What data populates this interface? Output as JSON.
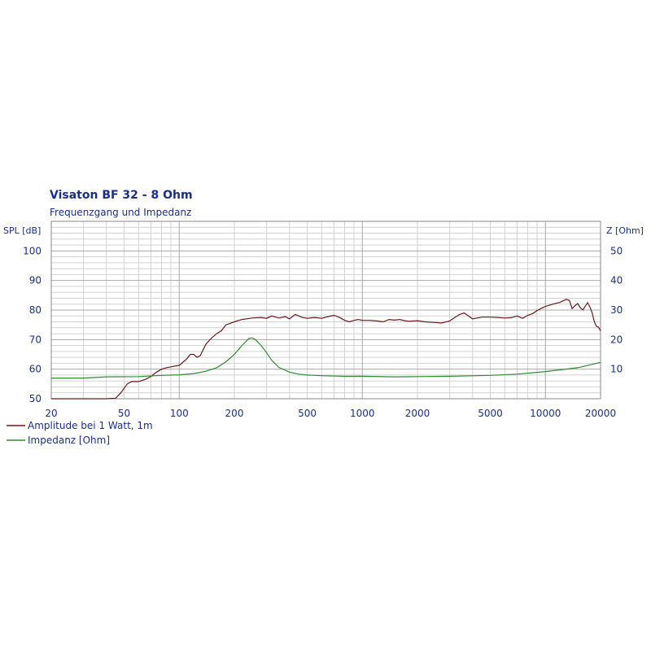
{
  "chart_data": {
    "type": "line",
    "title": "Visaton BF 32 - 8 Ohm",
    "subtitle": "Frequenzgang und Impedanz",
    "x_scale": "log",
    "xlim": [
      20,
      20000
    ],
    "x_ticks": [
      20,
      50,
      100,
      200,
      500,
      1000,
      2000,
      5000,
      10000,
      20000
    ],
    "y_left": {
      "label": "SPL [dB]",
      "lim": [
        50,
        110
      ],
      "ticks": [
        50,
        60,
        70,
        80,
        90,
        100
      ]
    },
    "y_right": {
      "label": "Z [Ohm]",
      "lim": [
        0,
        60
      ],
      "ticks": [
        10,
        20,
        30,
        40,
        50
      ]
    },
    "grid": true,
    "legend_position": "bottom-left",
    "series": [
      {
        "name": "Amplitude bei 1 Watt, 1m",
        "axis": "left",
        "color": "#6b1a1a",
        "points": [
          [
            20,
            50
          ],
          [
            30,
            50
          ],
          [
            40,
            50
          ],
          [
            45,
            50.2
          ],
          [
            48,
            52
          ],
          [
            52,
            55
          ],
          [
            55,
            55.8
          ],
          [
            60,
            55.8
          ],
          [
            65,
            56.5
          ],
          [
            70,
            57.5
          ],
          [
            75,
            59
          ],
          [
            80,
            60
          ],
          [
            85,
            60.5
          ],
          [
            90,
            60.8
          ],
          [
            100,
            61.3
          ],
          [
            110,
            63.5
          ],
          [
            115,
            65
          ],
          [
            120,
            65
          ],
          [
            125,
            64
          ],
          [
            130,
            64.5
          ],
          [
            140,
            68.5
          ],
          [
            150,
            70.5
          ],
          [
            160,
            72
          ],
          [
            170,
            73
          ],
          [
            180,
            75
          ],
          [
            200,
            76
          ],
          [
            220,
            76.8
          ],
          [
            250,
            77.3
          ],
          [
            280,
            77.5
          ],
          [
            300,
            77.2
          ],
          [
            320,
            78
          ],
          [
            350,
            77.3
          ],
          [
            380,
            77.8
          ],
          [
            400,
            77
          ],
          [
            430,
            78.5
          ],
          [
            470,
            77.5
          ],
          [
            500,
            77.2
          ],
          [
            550,
            77.5
          ],
          [
            600,
            77.2
          ],
          [
            650,
            77.8
          ],
          [
            700,
            78.2
          ],
          [
            750,
            77.5
          ],
          [
            800,
            76.5
          ],
          [
            850,
            76
          ],
          [
            900,
            76.5
          ],
          [
            950,
            76.8
          ],
          [
            1000,
            76.5
          ],
          [
            1100,
            76.5
          ],
          [
            1200,
            76.3
          ],
          [
            1300,
            76
          ],
          [
            1400,
            76.8
          ],
          [
            1500,
            76.6
          ],
          [
            1600,
            76.8
          ],
          [
            1700,
            76.4
          ],
          [
            1800,
            76.2
          ],
          [
            2000,
            76.4
          ],
          [
            2200,
            76
          ],
          [
            2500,
            75.8
          ],
          [
            2700,
            75.6
          ],
          [
            3000,
            76.3
          ],
          [
            3200,
            77.5
          ],
          [
            3400,
            78.5
          ],
          [
            3600,
            79
          ],
          [
            3800,
            78
          ],
          [
            4000,
            77
          ],
          [
            4500,
            77.6
          ],
          [
            5000,
            77.6
          ],
          [
            5500,
            77.5
          ],
          [
            6000,
            77.3
          ],
          [
            6500,
            77.4
          ],
          [
            7000,
            78
          ],
          [
            7500,
            77.2
          ],
          [
            8000,
            78.2
          ],
          [
            8500,
            78.8
          ],
          [
            9000,
            79.8
          ],
          [
            9500,
            80.6
          ],
          [
            10000,
            81.2
          ],
          [
            11000,
            82
          ],
          [
            12000,
            82.6
          ],
          [
            13000,
            83.6
          ],
          [
            13500,
            83.3
          ],
          [
            14000,
            80.5
          ],
          [
            14500,
            81.5
          ],
          [
            15000,
            82.2
          ],
          [
            15500,
            80.8
          ],
          [
            16000,
            80
          ],
          [
            16500,
            81.3
          ],
          [
            17000,
            82.5
          ],
          [
            17500,
            81
          ],
          [
            18000,
            79
          ],
          [
            18500,
            76
          ],
          [
            19000,
            74.5
          ],
          [
            19500,
            74.2
          ],
          [
            20000,
            73
          ]
        ]
      },
      {
        "name": "Impedanz [Ohm]",
        "axis": "right",
        "color": "#2e8b2e",
        "points": [
          [
            20,
            7
          ],
          [
            30,
            7
          ],
          [
            40,
            7.4
          ],
          [
            60,
            7.5
          ],
          [
            80,
            7.9
          ],
          [
            100,
            8.1
          ],
          [
            120,
            8.5
          ],
          [
            140,
            9.3
          ],
          [
            160,
            10.5
          ],
          [
            180,
            12.5
          ],
          [
            200,
            15
          ],
          [
            220,
            18
          ],
          [
            240,
            20.4
          ],
          [
            250,
            20.6
          ],
          [
            260,
            20.1
          ],
          [
            280,
            18
          ],
          [
            300,
            15.6
          ],
          [
            320,
            13
          ],
          [
            350,
            10.6
          ],
          [
            400,
            9
          ],
          [
            450,
            8.3
          ],
          [
            500,
            8
          ],
          [
            600,
            7.8
          ],
          [
            800,
            7.6
          ],
          [
            1000,
            7.6
          ],
          [
            1500,
            7.4
          ],
          [
            2000,
            7.5
          ],
          [
            3000,
            7.6
          ],
          [
            5000,
            7.9
          ],
          [
            7000,
            8.3
          ],
          [
            10000,
            9.2
          ],
          [
            15000,
            10.5
          ],
          [
            20000,
            12.3
          ]
        ]
      }
    ]
  },
  "legend": [
    {
      "label": "Amplitude bei 1 Watt, 1m",
      "color": "#6b1a1a"
    },
    {
      "label": "Impedanz [Ohm]",
      "color": "#2e8b2e"
    }
  ]
}
